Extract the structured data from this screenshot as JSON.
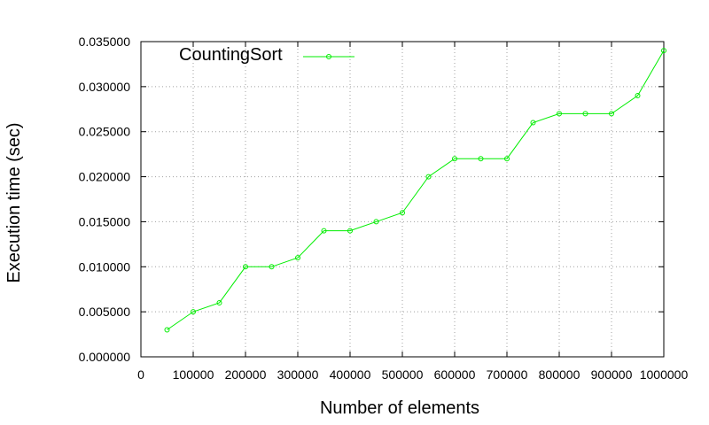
{
  "chart_data": {
    "type": "line",
    "title": "",
    "xlabel": "Number of elements",
    "ylabel": "Execution time (sec)",
    "xlim": [
      0,
      1000000
    ],
    "ylim": [
      0,
      0.035
    ],
    "x_ticks": [
      "0",
      "100000",
      "200000",
      "300000",
      "400000",
      "500000",
      "600000",
      "700000",
      "800000",
      "900000",
      "1000000"
    ],
    "y_ticks": [
      "0.000000",
      "0.005000",
      "0.010000",
      "0.015000",
      "0.020000",
      "0.025000",
      "0.030000",
      "0.035000"
    ],
    "grid": true,
    "legend_position": "top-left",
    "series": [
      {
        "name": "CountingSort",
        "color": "#00ee00",
        "marker": "circle",
        "x": [
          50000,
          100000,
          150000,
          200000,
          250000,
          300000,
          350000,
          400000,
          450000,
          500000,
          550000,
          600000,
          650000,
          700000,
          750000,
          800000,
          850000,
          900000,
          950000,
          1000000
        ],
        "y": [
          0.003,
          0.005,
          0.006,
          0.01,
          0.01,
          0.011,
          0.014,
          0.014,
          0.015,
          0.016,
          0.02,
          0.022,
          0.022,
          0.022,
          0.026,
          0.027,
          0.027,
          0.027,
          0.029,
          0.034
        ]
      }
    ]
  }
}
